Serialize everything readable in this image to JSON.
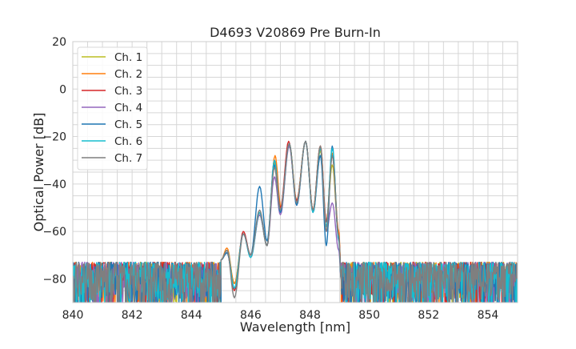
{
  "chart_data": {
    "type": "line",
    "title": "D4693 V20869 Pre Burn-In",
    "xlabel": "Wavelength [nm]",
    "ylabel": "Optical Power [dB]",
    "xlim": [
      840,
      855
    ],
    "ylim": [
      -90,
      20
    ],
    "xticks": [
      840,
      842,
      844,
      846,
      848,
      850,
      852,
      854
    ],
    "yticks": [
      -80,
      -60,
      -40,
      -20,
      0,
      20
    ],
    "grid": true,
    "legend": "top-left",
    "noise_floor": {
      "range_db": [
        -90,
        -72
      ],
      "below_nm": 845.0,
      "above_nm": 849.05
    },
    "series": [
      {
        "name": "Ch. 1",
        "color": "#bcbd22",
        "points": [
          [
            845.0,
            -72
          ],
          [
            845.2,
            -68
          ],
          [
            845.45,
            -82
          ],
          [
            845.75,
            -61
          ],
          [
            846.0,
            -70
          ],
          [
            846.3,
            -53
          ],
          [
            846.55,
            -66
          ],
          [
            846.8,
            -31
          ],
          [
            847.0,
            -50
          ],
          [
            847.3,
            -23
          ],
          [
            847.55,
            -47
          ],
          [
            847.85,
            -22
          ],
          [
            848.1,
            -51
          ],
          [
            848.35,
            -26
          ],
          [
            848.55,
            -56
          ],
          [
            848.75,
            -32
          ],
          [
            848.97,
            -62
          ],
          [
            849.05,
            -78
          ]
        ]
      },
      {
        "name": "Ch. 2",
        "color": "#ff7f0e",
        "points": [
          [
            845.0,
            -72
          ],
          [
            845.2,
            -67
          ],
          [
            845.45,
            -82
          ],
          [
            845.75,
            -61
          ],
          [
            846.0,
            -70
          ],
          [
            846.3,
            -53
          ],
          [
            846.55,
            -66
          ],
          [
            846.82,
            -28
          ],
          [
            847.02,
            -50
          ],
          [
            847.3,
            -23
          ],
          [
            847.55,
            -47
          ],
          [
            847.85,
            -22
          ],
          [
            848.1,
            -51
          ],
          [
            848.35,
            -24
          ],
          [
            848.55,
            -56
          ],
          [
            848.75,
            -27
          ],
          [
            848.97,
            -60
          ],
          [
            849.05,
            -78
          ]
        ]
      },
      {
        "name": "Ch. 3",
        "color": "#d62728",
        "points": [
          [
            845.0,
            -72
          ],
          [
            845.2,
            -68
          ],
          [
            845.45,
            -85
          ],
          [
            845.75,
            -60
          ],
          [
            846.0,
            -70
          ],
          [
            846.3,
            -52
          ],
          [
            846.55,
            -66
          ],
          [
            846.8,
            -30
          ],
          [
            847.0,
            -50
          ],
          [
            847.28,
            -22
          ],
          [
            847.55,
            -47
          ],
          [
            847.85,
            -22
          ],
          [
            848.1,
            -51
          ],
          [
            848.35,
            -24
          ],
          [
            848.55,
            -56
          ],
          [
            848.75,
            -28
          ],
          [
            848.97,
            -62
          ],
          [
            849.05,
            -78
          ]
        ]
      },
      {
        "name": "Ch. 4",
        "color": "#9467bd",
        "points": [
          [
            845.0,
            -72
          ],
          [
            845.2,
            -69
          ],
          [
            845.45,
            -84
          ],
          [
            845.75,
            -61
          ],
          [
            846.0,
            -71
          ],
          [
            846.3,
            -53
          ],
          [
            846.55,
            -66
          ],
          [
            846.8,
            -37
          ],
          [
            847.0,
            -53
          ],
          [
            847.3,
            -24
          ],
          [
            847.55,
            -49
          ],
          [
            847.85,
            -22
          ],
          [
            848.1,
            -52
          ],
          [
            848.35,
            -28
          ],
          [
            848.55,
            -60
          ],
          [
            848.75,
            -48
          ],
          [
            848.97,
            -68
          ],
          [
            849.05,
            -80
          ]
        ]
      },
      {
        "name": "Ch. 5",
        "color": "#1f77b4",
        "points": [
          [
            845.0,
            -72
          ],
          [
            845.2,
            -69
          ],
          [
            845.45,
            -84
          ],
          [
            845.75,
            -61
          ],
          [
            846.0,
            -70
          ],
          [
            846.3,
            -41
          ],
          [
            846.55,
            -64
          ],
          [
            846.8,
            -32
          ],
          [
            847.0,
            -52
          ],
          [
            847.3,
            -23
          ],
          [
            847.55,
            -49
          ],
          [
            847.85,
            -22
          ],
          [
            848.1,
            -52
          ],
          [
            848.35,
            -28
          ],
          [
            848.55,
            -66
          ],
          [
            848.75,
            -24
          ],
          [
            848.97,
            -64
          ],
          [
            849.05,
            -80
          ]
        ]
      },
      {
        "name": "Ch. 6",
        "color": "#17becf",
        "points": [
          [
            845.0,
            -72
          ],
          [
            845.2,
            -68
          ],
          [
            845.45,
            -84
          ],
          [
            845.75,
            -61
          ],
          [
            846.0,
            -71
          ],
          [
            846.3,
            -52
          ],
          [
            846.55,
            -66
          ],
          [
            846.8,
            -30
          ],
          [
            847.0,
            -51
          ],
          [
            847.3,
            -23
          ],
          [
            847.55,
            -48
          ],
          [
            847.85,
            -22
          ],
          [
            848.1,
            -52
          ],
          [
            848.35,
            -25
          ],
          [
            848.55,
            -58
          ],
          [
            848.75,
            -25
          ],
          [
            848.97,
            -63
          ],
          [
            849.05,
            -80
          ]
        ]
      },
      {
        "name": "Ch. 7",
        "color": "#7f7f7f",
        "points": [
          [
            845.0,
            -72
          ],
          [
            845.2,
            -68
          ],
          [
            845.45,
            -88
          ],
          [
            845.75,
            -61
          ],
          [
            846.0,
            -70
          ],
          [
            846.3,
            -51
          ],
          [
            846.55,
            -66
          ],
          [
            846.8,
            -33
          ],
          [
            847.0,
            -51
          ],
          [
            847.3,
            -23
          ],
          [
            847.55,
            -48
          ],
          [
            847.85,
            -22
          ],
          [
            848.1,
            -51
          ],
          [
            848.35,
            -24
          ],
          [
            848.55,
            -60
          ],
          [
            848.75,
            -28
          ],
          [
            848.97,
            -62
          ],
          [
            849.05,
            -80
          ]
        ]
      }
    ]
  }
}
